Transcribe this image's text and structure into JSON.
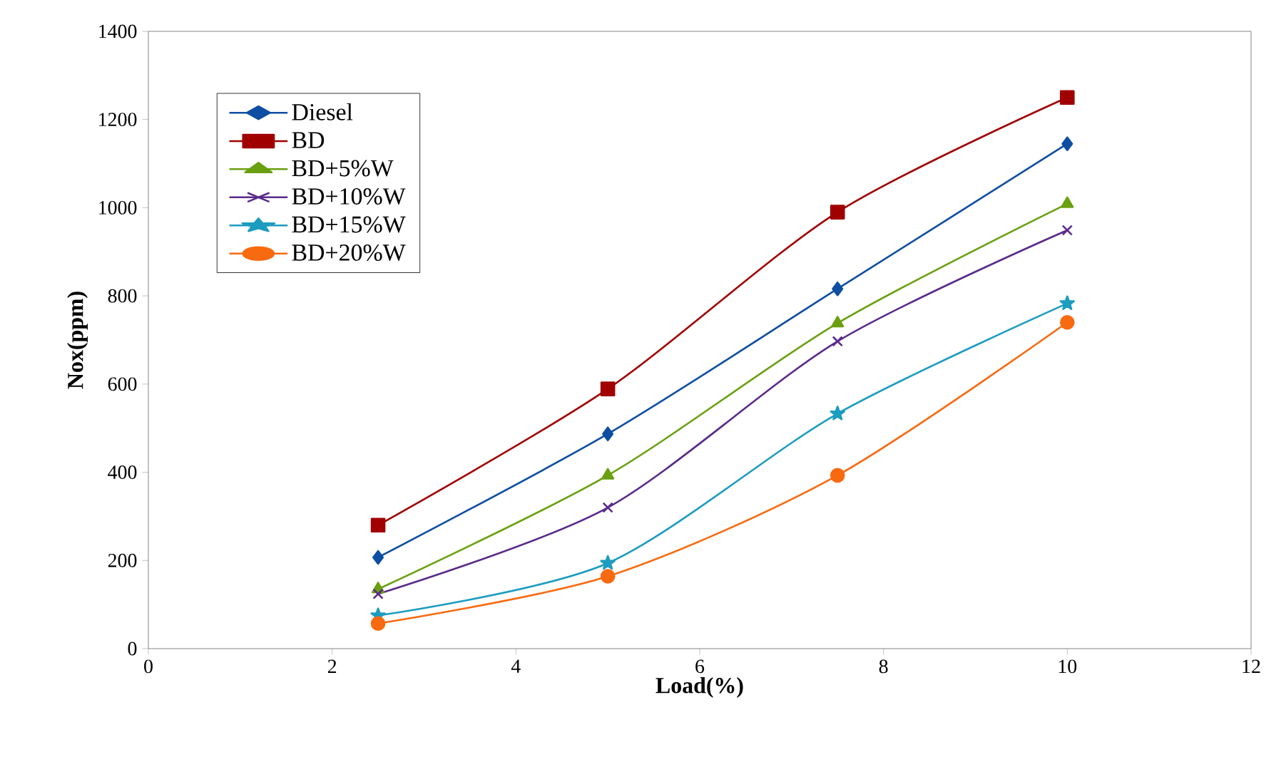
{
  "chart_data": {
    "type": "line",
    "xlabel": "Load(%)",
    "ylabel": "Nox(ppm)",
    "x": [
      2.5,
      5,
      7.5,
      10
    ],
    "series": [
      {
        "name": "Diesel",
        "color": "#0e4ea2",
        "marker": "diamond",
        "values": [
          207,
          487,
          816,
          1145
        ]
      },
      {
        "name": "BD",
        "color": "#a00000",
        "marker": "square",
        "values": [
          280,
          589,
          990,
          1250
        ]
      },
      {
        "name": "BD+5%W",
        "color": "#6aa010",
        "marker": "triangle",
        "values": [
          135,
          393,
          738,
          1009
        ]
      },
      {
        "name": "BD+10%W",
        "color": "#5a2a8a",
        "marker": "cross",
        "values": [
          124,
          320,
          697,
          949
        ]
      },
      {
        "name": "BD+15%W",
        "color": "#1c9cc0",
        "marker": "star",
        "values": [
          75,
          194,
          533,
          783
        ]
      },
      {
        "name": "BD+20%W",
        "color": "#f86a10",
        "marker": "circle",
        "values": [
          57,
          164,
          393,
          740
        ]
      }
    ],
    "xlim": [
      0,
      12
    ],
    "xticks": [
      0,
      2,
      4,
      6,
      8,
      10,
      12
    ],
    "ylim": [
      0,
      1400
    ],
    "yticks": [
      0,
      200,
      400,
      600,
      800,
      1000,
      1200,
      1400
    ],
    "grid": false,
    "legend": "top left",
    "line_style": "solid"
  }
}
